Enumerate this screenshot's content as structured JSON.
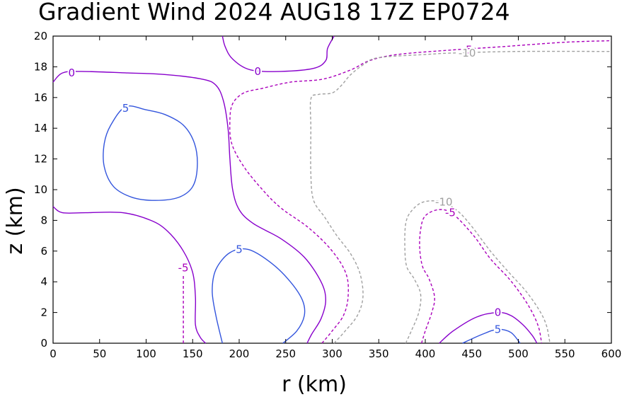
{
  "chart_data": {
    "type": "contour",
    "title": "Gradient Wind 2024 AUG18 17Z   EP0724",
    "xlabel": "r (km)",
    "ylabel": "z (km)",
    "xlim": [
      0,
      600
    ],
    "ylim": [
      0,
      20
    ],
    "x_ticks": [
      0,
      50,
      100,
      150,
      200,
      250,
      300,
      350,
      400,
      450,
      500,
      550,
      600
    ],
    "y_ticks": [
      0,
      2,
      4,
      6,
      8,
      10,
      12,
      14,
      16,
      18,
      20
    ],
    "grid": false,
    "colors": {
      "positive": "#3355dd",
      "zero": "#8800cc",
      "neg5": "#aa00bb",
      "neg10": "#a0a0a0"
    },
    "contours": [
      {
        "level": 5,
        "color": "#3355dd",
        "dashed": false,
        "closed": true,
        "points": [
          [
            78,
            15.4
          ],
          [
            100,
            15.2
          ],
          [
            120,
            14.9
          ],
          [
            140,
            14.2
          ],
          [
            152,
            13.0
          ],
          [
            155,
            11.5
          ],
          [
            150,
            10.2
          ],
          [
            135,
            9.5
          ],
          [
            110,
            9.3
          ],
          [
            85,
            9.5
          ],
          [
            65,
            10.2
          ],
          [
            55,
            11.5
          ],
          [
            55,
            13.0
          ],
          [
            62,
            14.2
          ],
          [
            78,
            15.4
          ]
        ]
      },
      {
        "level": 5,
        "color": "#3355dd",
        "dashed": false,
        "closed": false,
        "points": [
          [
            182,
            0
          ],
          [
            175,
            1.8
          ],
          [
            171,
            3.4
          ],
          [
            175,
            4.8
          ],
          [
            190,
            5.9
          ],
          [
            210,
            6.1
          ],
          [
            235,
            5.2
          ],
          [
            255,
            4.0
          ],
          [
            268,
            2.8
          ],
          [
            270,
            1.8
          ],
          [
            262,
            0.8
          ],
          [
            247,
            0
          ]
        ]
      },
      {
        "level": 5,
        "color": "#3355dd",
        "dashed": false,
        "closed": false,
        "points": [
          [
            440,
            0
          ],
          [
            462,
            0.6
          ],
          [
            478,
            0.9
          ],
          [
            492,
            0.7
          ],
          [
            502,
            0
          ]
        ]
      },
      {
        "level": 0,
        "color": "#8800cc",
        "dashed": false,
        "closed": false,
        "points": [
          [
            0,
            17.0
          ],
          [
            10,
            17.6
          ],
          [
            30,
            17.7
          ],
          [
            80,
            17.6
          ],
          [
            120,
            17.5
          ],
          [
            160,
            17.2
          ],
          [
            175,
            16.8
          ],
          [
            183,
            15.8
          ],
          [
            188,
            14.0
          ],
          [
            190,
            12.0
          ],
          [
            193,
            10.0
          ],
          [
            200,
            8.7
          ],
          [
            215,
            7.8
          ],
          [
            245,
            6.8
          ],
          [
            270,
            5.6
          ],
          [
            288,
            4.0
          ],
          [
            293,
            2.8
          ],
          [
            288,
            1.6
          ],
          [
            278,
            0.6
          ],
          [
            273,
            0
          ]
        ]
      },
      {
        "level": 0,
        "color": "#8800cc",
        "dashed": false,
        "closed": false,
        "points": [
          [
            0,
            8.9
          ],
          [
            10,
            8.5
          ],
          [
            35,
            8.5
          ],
          [
            75,
            8.5
          ],
          [
            105,
            8.0
          ],
          [
            123,
            7.3
          ],
          [
            140,
            6.0
          ],
          [
            150,
            4.6
          ],
          [
            153,
            3.0
          ],
          [
            153,
            1.2
          ],
          [
            158,
            0.4
          ],
          [
            164,
            0
          ]
        ]
      },
      {
        "level": 0,
        "color": "#8800cc",
        "dashed": false,
        "closed": false,
        "points": [
          [
            182,
            20
          ],
          [
            185,
            19.3
          ],
          [
            193,
            18.5
          ],
          [
            212,
            17.8
          ],
          [
            245,
            17.7
          ],
          [
            280,
            17.9
          ],
          [
            293,
            18.4
          ],
          [
            295,
            19.2
          ],
          [
            302,
            20
          ]
        ]
      },
      {
        "level": 0,
        "color": "#8800cc",
        "dashed": false,
        "closed": false,
        "points": [
          [
            415,
            0
          ],
          [
            430,
            0.8
          ],
          [
            455,
            1.7
          ],
          [
            478,
            2.0
          ],
          [
            492,
            1.8
          ],
          [
            505,
            1.2
          ],
          [
            515,
            0.5
          ],
          [
            520,
            0
          ]
        ]
      },
      {
        "level": -5,
        "color": "#aa00bb",
        "dashed": true,
        "closed": false,
        "points": [
          [
            140,
            0
          ],
          [
            140,
            1.5
          ],
          [
            140,
            3.0
          ],
          [
            140,
            4.5
          ]
        ]
      },
      {
        "level": -5,
        "color": "#aa00bb",
        "dashed": true,
        "closed": false,
        "points": [
          [
            289,
            0
          ],
          [
            300,
            0.8
          ],
          [
            312,
            1.8
          ],
          [
            317,
            3.0
          ],
          [
            315,
            4.5
          ],
          [
            300,
            6.0
          ],
          [
            275,
            7.5
          ],
          [
            245,
            8.8
          ],
          [
            225,
            10.0
          ],
          [
            205,
            11.5
          ],
          [
            192,
            13.0
          ],
          [
            190,
            14.5
          ],
          [
            193,
            15.6
          ],
          [
            205,
            16.3
          ],
          [
            225,
            16.6
          ],
          [
            255,
            17.0
          ],
          [
            290,
            17.2
          ],
          [
            320,
            17.8
          ],
          [
            340,
            18.4
          ],
          [
            370,
            18.8
          ],
          [
            430,
            19.1
          ],
          [
            480,
            19.3
          ],
          [
            550,
            19.6
          ],
          [
            600,
            19.7
          ]
        ]
      },
      {
        "level": -5,
        "color": "#aa00bb",
        "dashed": true,
        "closed": false,
        "points": [
          [
            396,
            0
          ],
          [
            400,
            0.8
          ],
          [
            407,
            2.0
          ],
          [
            410,
            3.0
          ],
          [
            404,
            4.2
          ],
          [
            397,
            5.0
          ],
          [
            394,
            6.2
          ],
          [
            395,
            7.4
          ],
          [
            400,
            8.3
          ],
          [
            415,
            8.7
          ],
          [
            430,
            8.4
          ],
          [
            452,
            7.0
          ],
          [
            470,
            5.5
          ],
          [
            490,
            4.2
          ],
          [
            505,
            3.0
          ],
          [
            515,
            2.0
          ],
          [
            522,
            1.0
          ],
          [
            525,
            0
          ]
        ]
      },
      {
        "level": -10,
        "color": "#a0a0a0",
        "dashed": true,
        "closed": false,
        "points": [
          [
            302,
            0
          ],
          [
            314,
            0.8
          ],
          [
            327,
            1.8
          ],
          [
            333,
            3.0
          ],
          [
            330,
            4.5
          ],
          [
            320,
            5.8
          ],
          [
            305,
            7.0
          ],
          [
            292,
            8.2
          ],
          [
            280,
            9.3
          ],
          [
            277,
            11.0
          ],
          [
            277,
            14.0
          ],
          [
            277,
            15.9
          ],
          [
            285,
            16.2
          ],
          [
            300,
            16.3
          ],
          [
            310,
            16.8
          ],
          [
            320,
            17.5
          ],
          [
            335,
            18.2
          ],
          [
            350,
            18.6
          ],
          [
            400,
            18.8
          ],
          [
            430,
            18.9
          ],
          [
            500,
            19.0
          ],
          [
            600,
            19.0
          ]
        ]
      },
      {
        "level": -10,
        "color": "#a0a0a0",
        "dashed": true,
        "closed": false,
        "points": [
          [
            379,
            0
          ],
          [
            385,
            0.8
          ],
          [
            393,
            2.0
          ],
          [
            395,
            3.2
          ],
          [
            388,
            4.2
          ],
          [
            380,
            5.0
          ],
          [
            378,
            6.3
          ],
          [
            379,
            7.8
          ],
          [
            385,
            8.6
          ],
          [
            398,
            9.2
          ],
          [
            418,
            9.2
          ],
          [
            435,
            8.6
          ],
          [
            450,
            7.6
          ],
          [
            470,
            6.0
          ],
          [
            490,
            4.6
          ],
          [
            508,
            3.4
          ],
          [
            522,
            2.2
          ],
          [
            530,
            1.2
          ],
          [
            534,
            0
          ]
        ]
      }
    ],
    "labels": [
      {
        "text": "0",
        "x": 20,
        "y": 17.6,
        "color": "#8800cc"
      },
      {
        "text": "5",
        "x": 78,
        "y": 15.3,
        "color": "#3355dd"
      },
      {
        "text": "0",
        "x": 220,
        "y": 17.7,
        "color": "#8800cc"
      },
      {
        "text": "5",
        "x": 200,
        "y": 6.1,
        "color": "#3355dd"
      },
      {
        "text": "-5",
        "x": 140,
        "y": 4.9,
        "color": "#aa00bb"
      },
      {
        "text": "-5",
        "x": 445,
        "y": 19.1,
        "color": "#aa00bb"
      },
      {
        "text": "-10",
        "x": 445,
        "y": 18.9,
        "color": "#a0a0a0"
      },
      {
        "text": "-10",
        "x": 420,
        "y": 9.2,
        "color": "#a0a0a0"
      },
      {
        "text": "-5",
        "x": 427,
        "y": 8.5,
        "color": "#aa00bb"
      },
      {
        "text": "0",
        "x": 478,
        "y": 2.0,
        "color": "#8800cc"
      },
      {
        "text": "5",
        "x": 478,
        "y": 0.9,
        "color": "#3355dd"
      }
    ]
  }
}
